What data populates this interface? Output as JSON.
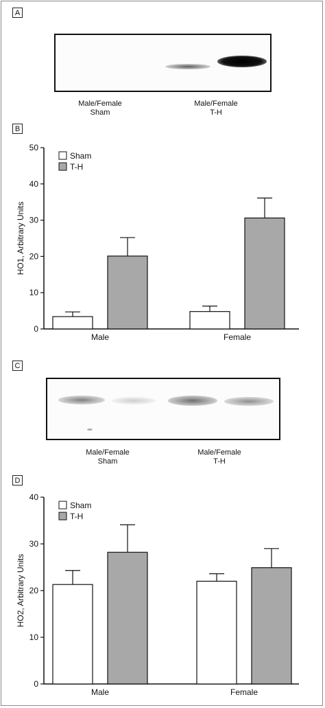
{
  "panels": {
    "a": {
      "letter": "A"
    },
    "b": {
      "letter": "B"
    },
    "c": {
      "letter": "C"
    },
    "d": {
      "letter": "D"
    }
  },
  "blot_a": {
    "lane_labels": [
      {
        "line1": "Male/Female",
        "line2": "Sham"
      },
      {
        "line1": "Male/Female",
        "line2": "T-H"
      }
    ]
  },
  "blot_c": {
    "lane_labels": [
      {
        "line1": "Male/Female",
        "line2": "Sham"
      },
      {
        "line1": "Male/Female",
        "line2": "T-H"
      }
    ]
  },
  "colors": {
    "sham": "#ffffff",
    "th": "#a8a8a8",
    "axis": "#111111"
  },
  "chart_data": [
    {
      "type": "bar",
      "panel": "B",
      "categories": [
        "Male",
        "Female"
      ],
      "ylabel": "HO1, Arbitrary Units",
      "ylim": [
        0,
        50
      ],
      "yticks": [
        0,
        10,
        20,
        30,
        40,
        50
      ],
      "legend": "top-left",
      "series": [
        {
          "name": "Sham",
          "values": [
            3.4,
            4.8
          ],
          "errors": [
            1.3,
            1.5
          ]
        },
        {
          "name": "T-H",
          "values": [
            20.1,
            30.6
          ],
          "errors": [
            5.1,
            5.5
          ]
        }
      ]
    },
    {
      "type": "bar",
      "panel": "D",
      "categories": [
        "Male",
        "Female"
      ],
      "ylabel": "HO2, Arbitrary Units",
      "ylim": [
        0,
        40
      ],
      "yticks": [
        0,
        10,
        20,
        30,
        40
      ],
      "legend": "top-left",
      "series": [
        {
          "name": "Sham",
          "values": [
            21.3,
            22.0
          ],
          "errors": [
            3.0,
            1.6
          ]
        },
        {
          "name": "T-H",
          "values": [
            28.2,
            24.9
          ],
          "errors": [
            5.9,
            4.1
          ]
        }
      ]
    }
  ]
}
